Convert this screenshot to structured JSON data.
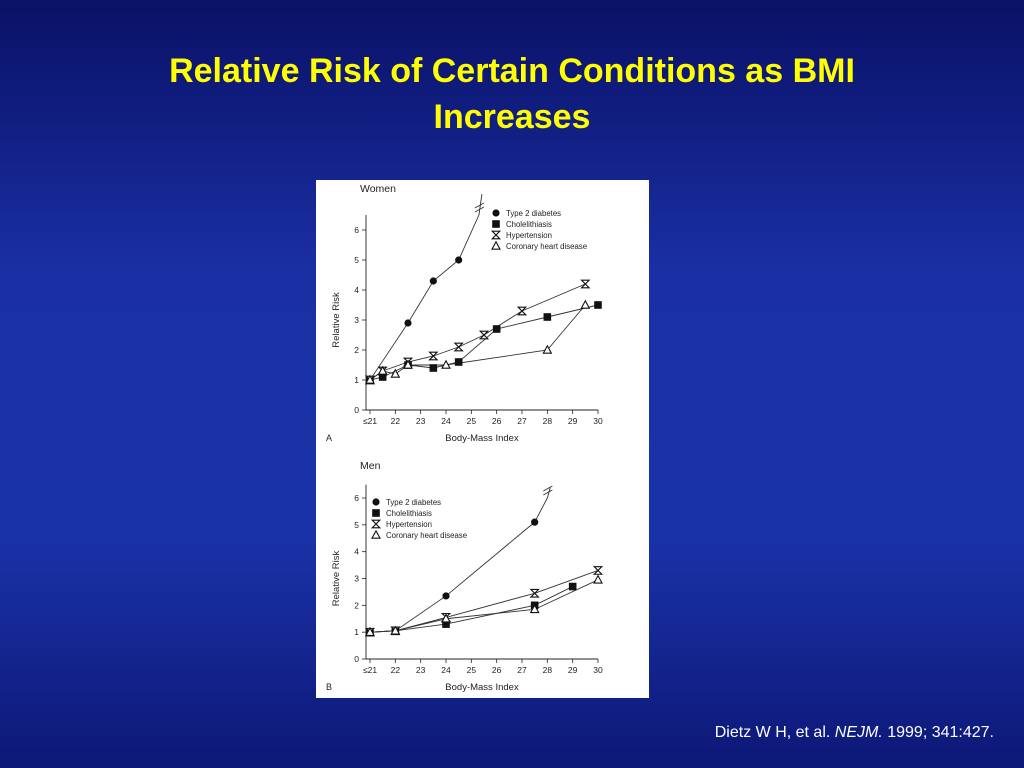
{
  "slide": {
    "title_line1": "Relative Risk of Certain Conditions as BMI",
    "title_line2": "Increases"
  },
  "citation": {
    "authors": "Dietz W H, et al. ",
    "journal": "NEJM.",
    "rest": " 1999;  341:427."
  },
  "chart_data": [
    {
      "type": "line",
      "panel_label": "A",
      "title": "Women",
      "xlabel": "Body-Mass Index",
      "ylabel": "Relative Risk",
      "x_ticks": [
        21,
        22,
        23,
        24,
        25,
        26,
        27,
        28,
        29,
        30
      ],
      "x_tick_labels": [
        "≤21",
        "22",
        "23",
        "24",
        "25",
        "26",
        "27",
        "28",
        "29",
        "30"
      ],
      "y_ticks": [
        0,
        1,
        2,
        3,
        4,
        5,
        6
      ],
      "xlim": [
        20.5,
        30
      ],
      "ylim": [
        0,
        6.5
      ],
      "legend": "top-right",
      "series": [
        {
          "name": "Type 2 diabetes",
          "marker": "circle",
          "x": [
            21,
            22.5,
            23.5,
            24.5
          ],
          "y": [
            1.0,
            2.9,
            4.3,
            5.0
          ],
          "break_to": [
            25.3,
            6.5
          ],
          "break_mark": [
            25.3,
            7.2
          ]
        },
        {
          "name": "Cholelithiasis",
          "marker": "square",
          "x": [
            21,
            21.5,
            22.5,
            23.5,
            24.5,
            26,
            28,
            30
          ],
          "y": [
            1.0,
            1.1,
            1.5,
            1.4,
            1.6,
            2.7,
            3.1,
            3.5
          ]
        },
        {
          "name": "Hypertension",
          "marker": "hourglass",
          "x": [
            21,
            21.5,
            22.5,
            23.5,
            24.5,
            25.5,
            27,
            29.5
          ],
          "y": [
            1.0,
            1.3,
            1.6,
            1.8,
            2.1,
            2.5,
            3.3,
            4.2
          ]
        },
        {
          "name": "Coronary heart disease",
          "marker": "triangle",
          "x": [
            21,
            21.5,
            22,
            22.5,
            24,
            28,
            29.5
          ],
          "y": [
            1.0,
            1.3,
            1.2,
            1.5,
            1.5,
            2.0,
            3.5
          ]
        }
      ]
    },
    {
      "type": "line",
      "panel_label": "B",
      "title": "Men",
      "xlabel": "Body-Mass Index",
      "ylabel": "Relative Risk",
      "x_ticks": [
        21,
        22,
        23,
        24,
        25,
        26,
        27,
        28,
        29,
        30
      ],
      "x_tick_labels": [
        "≤21",
        "22",
        "23",
        "24",
        "25",
        "26",
        "27",
        "28",
        "29",
        "30"
      ],
      "y_ticks": [
        0,
        1,
        2,
        3,
        4,
        5,
        6
      ],
      "xlim": [
        20.5,
        30
      ],
      "ylim": [
        0,
        6.3
      ],
      "legend": "top-left",
      "series": [
        {
          "name": "Type 2 diabetes",
          "marker": "circle",
          "x": [
            21,
            22,
            24,
            27.5
          ],
          "y": [
            1.0,
            1.05,
            2.35,
            5.1
          ],
          "break_to": [
            28,
            6.0
          ],
          "break_mark": [
            28,
            6.4
          ]
        },
        {
          "name": "Cholelithiasis",
          "marker": "square",
          "x": [
            21,
            22,
            24,
            27.5,
            29
          ],
          "y": [
            1.0,
            1.05,
            1.3,
            2.0,
            2.7
          ]
        },
        {
          "name": "Hypertension",
          "marker": "hourglass",
          "x": [
            21,
            22,
            24,
            27.5,
            30
          ],
          "y": [
            1.0,
            1.05,
            1.55,
            2.45,
            3.3
          ]
        },
        {
          "name": "Coronary heart disease",
          "marker": "triangle",
          "x": [
            21,
            22,
            24,
            27.5,
            30
          ],
          "y": [
            1.0,
            1.05,
            1.5,
            1.85,
            2.95
          ]
        }
      ]
    }
  ]
}
